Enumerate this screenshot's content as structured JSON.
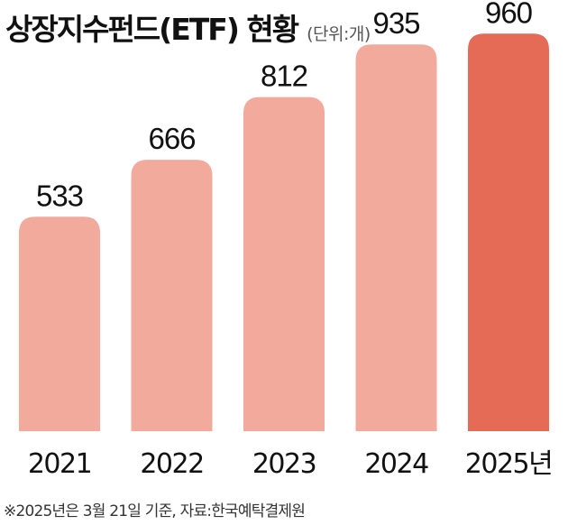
{
  "chart_data": {
    "type": "bar",
    "title": "상장지수펀드(ETF) 현황",
    "unit_label": "(단위:개)",
    "categories": [
      "2021",
      "2022",
      "2023",
      "2024",
      "2025년"
    ],
    "values": [
      533,
      666,
      812,
      935,
      960
    ],
    "data_labels": [
      "533",
      "666",
      "812",
      "935",
      "960"
    ],
    "ylim": [
      0,
      1000
    ],
    "grid": false,
    "colors": {
      "default_bar": "#f2aa9d",
      "highlight_bar": "#e66b57"
    },
    "highlight_index": 4
  },
  "footnote": "※2025년은 3월 21일 기준,  자료:한국예탁결제원"
}
